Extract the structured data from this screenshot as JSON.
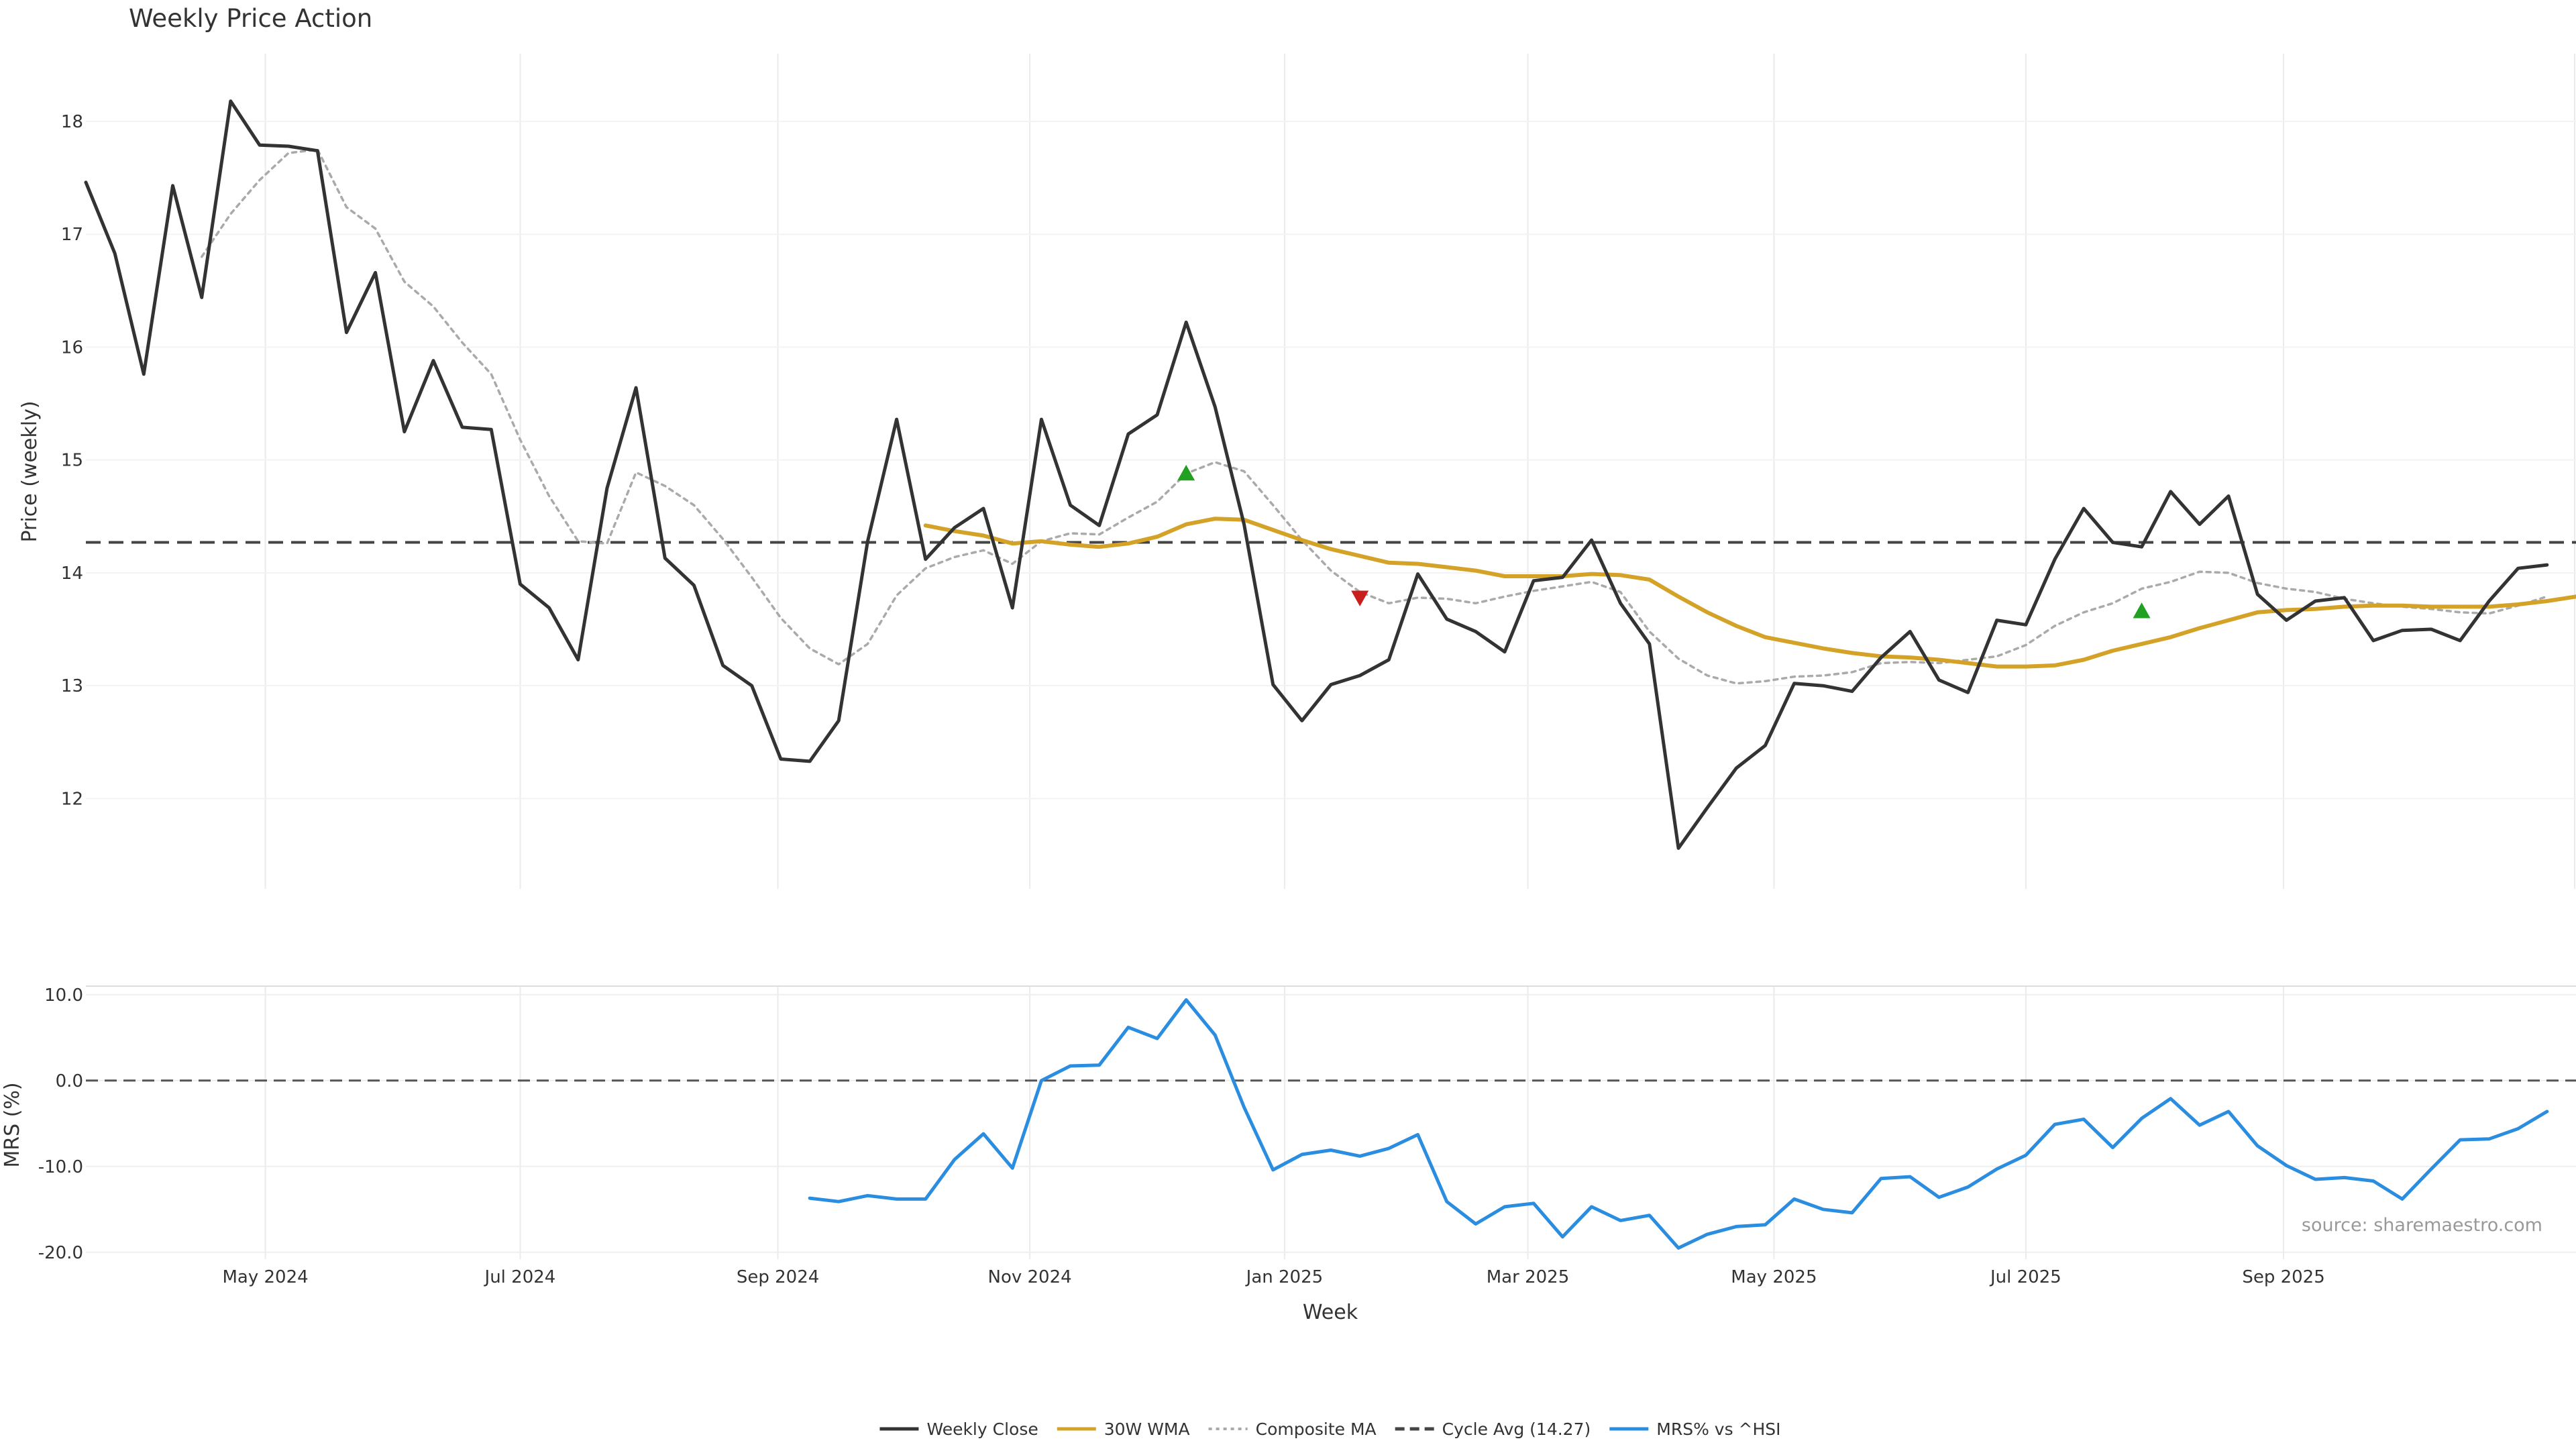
{
  "chart_data": [
    {
      "type": "line",
      "title": "Weekly Price Action",
      "ylabel": "Price (weekly)",
      "xlabel": "",
      "ylim": [
        11.2,
        18.6
      ],
      "yticks": [
        12,
        13,
        14,
        15,
        16,
        17,
        18
      ],
      "x_start_week": 0,
      "x_end_week": 86,
      "x_ticks": [
        {
          "label": "May 2024",
          "week": 6.2
        },
        {
          "label": "Jul 2024",
          "week": 15.0
        },
        {
          "label": "Sep 2024",
          "week": 23.9
        },
        {
          "label": "Nov 2024",
          "week": 32.6
        },
        {
          "label": "Jan 2025",
          "week": 41.4
        },
        {
          "label": "Mar 2025",
          "week": 49.8
        },
        {
          "label": "May 2025",
          "week": 58.3
        },
        {
          "label": "Jul 2025",
          "week": 67.0
        },
        {
          "label": "Sep 2025",
          "week": 75.9
        }
      ],
      "series": [
        {
          "name": "Weekly Close",
          "color": "#333333",
          "style": "solid",
          "start": 0,
          "values": [
            17.46,
            16.83,
            15.76,
            17.43,
            16.44,
            18.18,
            17.79,
            17.78,
            17.74,
            16.13,
            16.66,
            15.25,
            15.88,
            15.29,
            15.27,
            13.9,
            13.69,
            13.23,
            14.75,
            15.64,
            14.13,
            13.89,
            13.18,
            13.0,
            12.35,
            12.33,
            12.69,
            14.28,
            15.36,
            14.12,
            14.4,
            14.57,
            13.69,
            15.36,
            14.6,
            14.42,
            15.23,
            15.4,
            16.22,
            15.47,
            14.43,
            13.01,
            12.69,
            13.01,
            13.09,
            13.23,
            13.99,
            13.59,
            13.48,
            13.3,
            13.93,
            13.96,
            14.29,
            13.73,
            13.37,
            11.56,
            11.92,
            12.27,
            12.47,
            13.02,
            13.0,
            12.95,
            13.25,
            13.48,
            13.05,
            12.94,
            13.58,
            13.54,
            14.12,
            14.57,
            14.27,
            14.23,
            14.72,
            14.43,
            14.68,
            13.81,
            13.58,
            13.75,
            13.78,
            13.4,
            13.49,
            13.5,
            13.4,
            13.75,
            14.04,
            14.07
          ]
        },
        {
          "name": "30W WMA",
          "color": "#d4a227",
          "style": "solid",
          "start": 29,
          "values": [
            14.42,
            14.37,
            14.33,
            14.26,
            14.28,
            14.25,
            14.23,
            14.26,
            14.32,
            14.43,
            14.48,
            14.47,
            14.38,
            14.29,
            14.21,
            14.15,
            14.09,
            14.08,
            14.05,
            14.02,
            13.97,
            13.97,
            13.97,
            13.99,
            13.98,
            13.94,
            13.79,
            13.65,
            13.53,
            13.43,
            13.38,
            13.33,
            13.29,
            13.26,
            13.25,
            13.23,
            13.2,
            13.17,
            13.17,
            13.18,
            13.23,
            13.31,
            13.37,
            13.43,
            13.51,
            13.58,
            13.65,
            13.67,
            13.68,
            13.7,
            13.71,
            13.71,
            13.7,
            13.7,
            13.7,
            13.72,
            13.75,
            13.79
          ]
        },
        {
          "name": "Composite MA",
          "color": "#aaaaaa",
          "style": "dotted",
          "start": 4,
          "values": [
            16.8,
            17.18,
            17.48,
            17.72,
            17.75,
            17.24,
            17.05,
            16.58,
            16.36,
            16.04,
            15.76,
            15.18,
            14.68,
            14.28,
            14.26,
            14.89,
            14.77,
            14.6,
            14.3,
            13.96,
            13.6,
            13.33,
            13.19,
            13.37,
            13.8,
            14.04,
            14.14,
            14.2,
            14.08,
            14.28,
            14.35,
            14.34,
            14.49,
            14.63,
            14.88,
            14.98,
            14.9,
            14.6,
            14.29,
            14.02,
            13.83,
            13.73,
            13.78,
            13.77,
            13.73,
            13.79,
            13.84,
            13.88,
            13.92,
            13.83,
            13.48,
            13.24,
            13.09,
            13.02,
            13.04,
            13.08,
            13.09,
            13.12,
            13.2,
            13.21,
            13.2,
            13.23,
            13.26,
            13.36,
            13.53,
            13.65,
            13.73,
            13.86,
            13.92,
            14.01,
            14.0,
            13.91,
            13.86,
            13.83,
            13.77,
            13.73,
            13.7,
            13.68,
            13.65,
            13.64,
            13.71,
            13.79
          ]
        }
      ],
      "reference_line": {
        "name": "Cycle Avg (14.27)",
        "value": 14.27,
        "color": "#444444",
        "style": "dashed"
      },
      "markers": [
        {
          "type": "buy",
          "week": 38,
          "value": 14.88,
          "color": "#22a022"
        },
        {
          "type": "sell",
          "week": 44,
          "value": 13.78,
          "color": "#c81e1e"
        },
        {
          "type": "buy",
          "week": 71,
          "value": 13.66,
          "color": "#22a022"
        }
      ]
    },
    {
      "type": "line",
      "title": "",
      "ylabel": "MRS (%)",
      "xlabel": "Week",
      "ylim": [
        -20.8,
        11.0
      ],
      "yticks": [
        10.0,
        0.0,
        -10.0,
        -20.0
      ],
      "ytick_labels": [
        "10.0",
        "0.0",
        "-10.0",
        "-20.0"
      ],
      "series": [
        {
          "name": "MRS% vs ^HSI",
          "color": "#2b8de0",
          "style": "solid",
          "start": 25,
          "values": [
            -13.7,
            -14.1,
            -13.4,
            -13.8,
            -13.8,
            -9.2,
            -6.2,
            -10.2,
            0.0,
            1.7,
            1.8,
            6.2,
            4.9,
            9.4,
            5.3,
            -3.1,
            -10.4,
            -8.6,
            -8.1,
            -8.8,
            -7.9,
            -6.3,
            -14.1,
            -16.7,
            -14.7,
            -14.3,
            -18.2,
            -14.7,
            -16.3,
            -15.7,
            -19.5,
            -17.9,
            -17.0,
            -16.8,
            -13.8,
            -15.0,
            -15.4,
            -11.4,
            -11.2,
            -13.6,
            -12.4,
            -10.3,
            -8.7,
            -5.1,
            -4.5,
            -7.8,
            -4.4,
            -2.1,
            -5.2,
            -3.6,
            -7.6,
            -9.9,
            -11.5,
            -11.3,
            -11.7,
            -13.8,
            -10.3,
            -6.9,
            -6.8,
            -5.6,
            -3.6
          ]
        }
      ],
      "reference_line": {
        "value": 0.0,
        "color": "#555555",
        "style": "dashed"
      },
      "annotation": "source: sharemaestro.com"
    }
  ],
  "legend": [
    {
      "label": "Weekly Close",
      "color": "#333333",
      "style": "solid"
    },
    {
      "label": "30W WMA",
      "color": "#d4a227",
      "style": "solid"
    },
    {
      "label": "Composite MA",
      "color": "#aaaaaa",
      "style": "dotted"
    },
    {
      "label": "Cycle Avg (14.27)",
      "color": "#444444",
      "style": "dashed"
    },
    {
      "label": "MRS% vs ^HSI",
      "color": "#2b8de0",
      "style": "solid"
    }
  ]
}
